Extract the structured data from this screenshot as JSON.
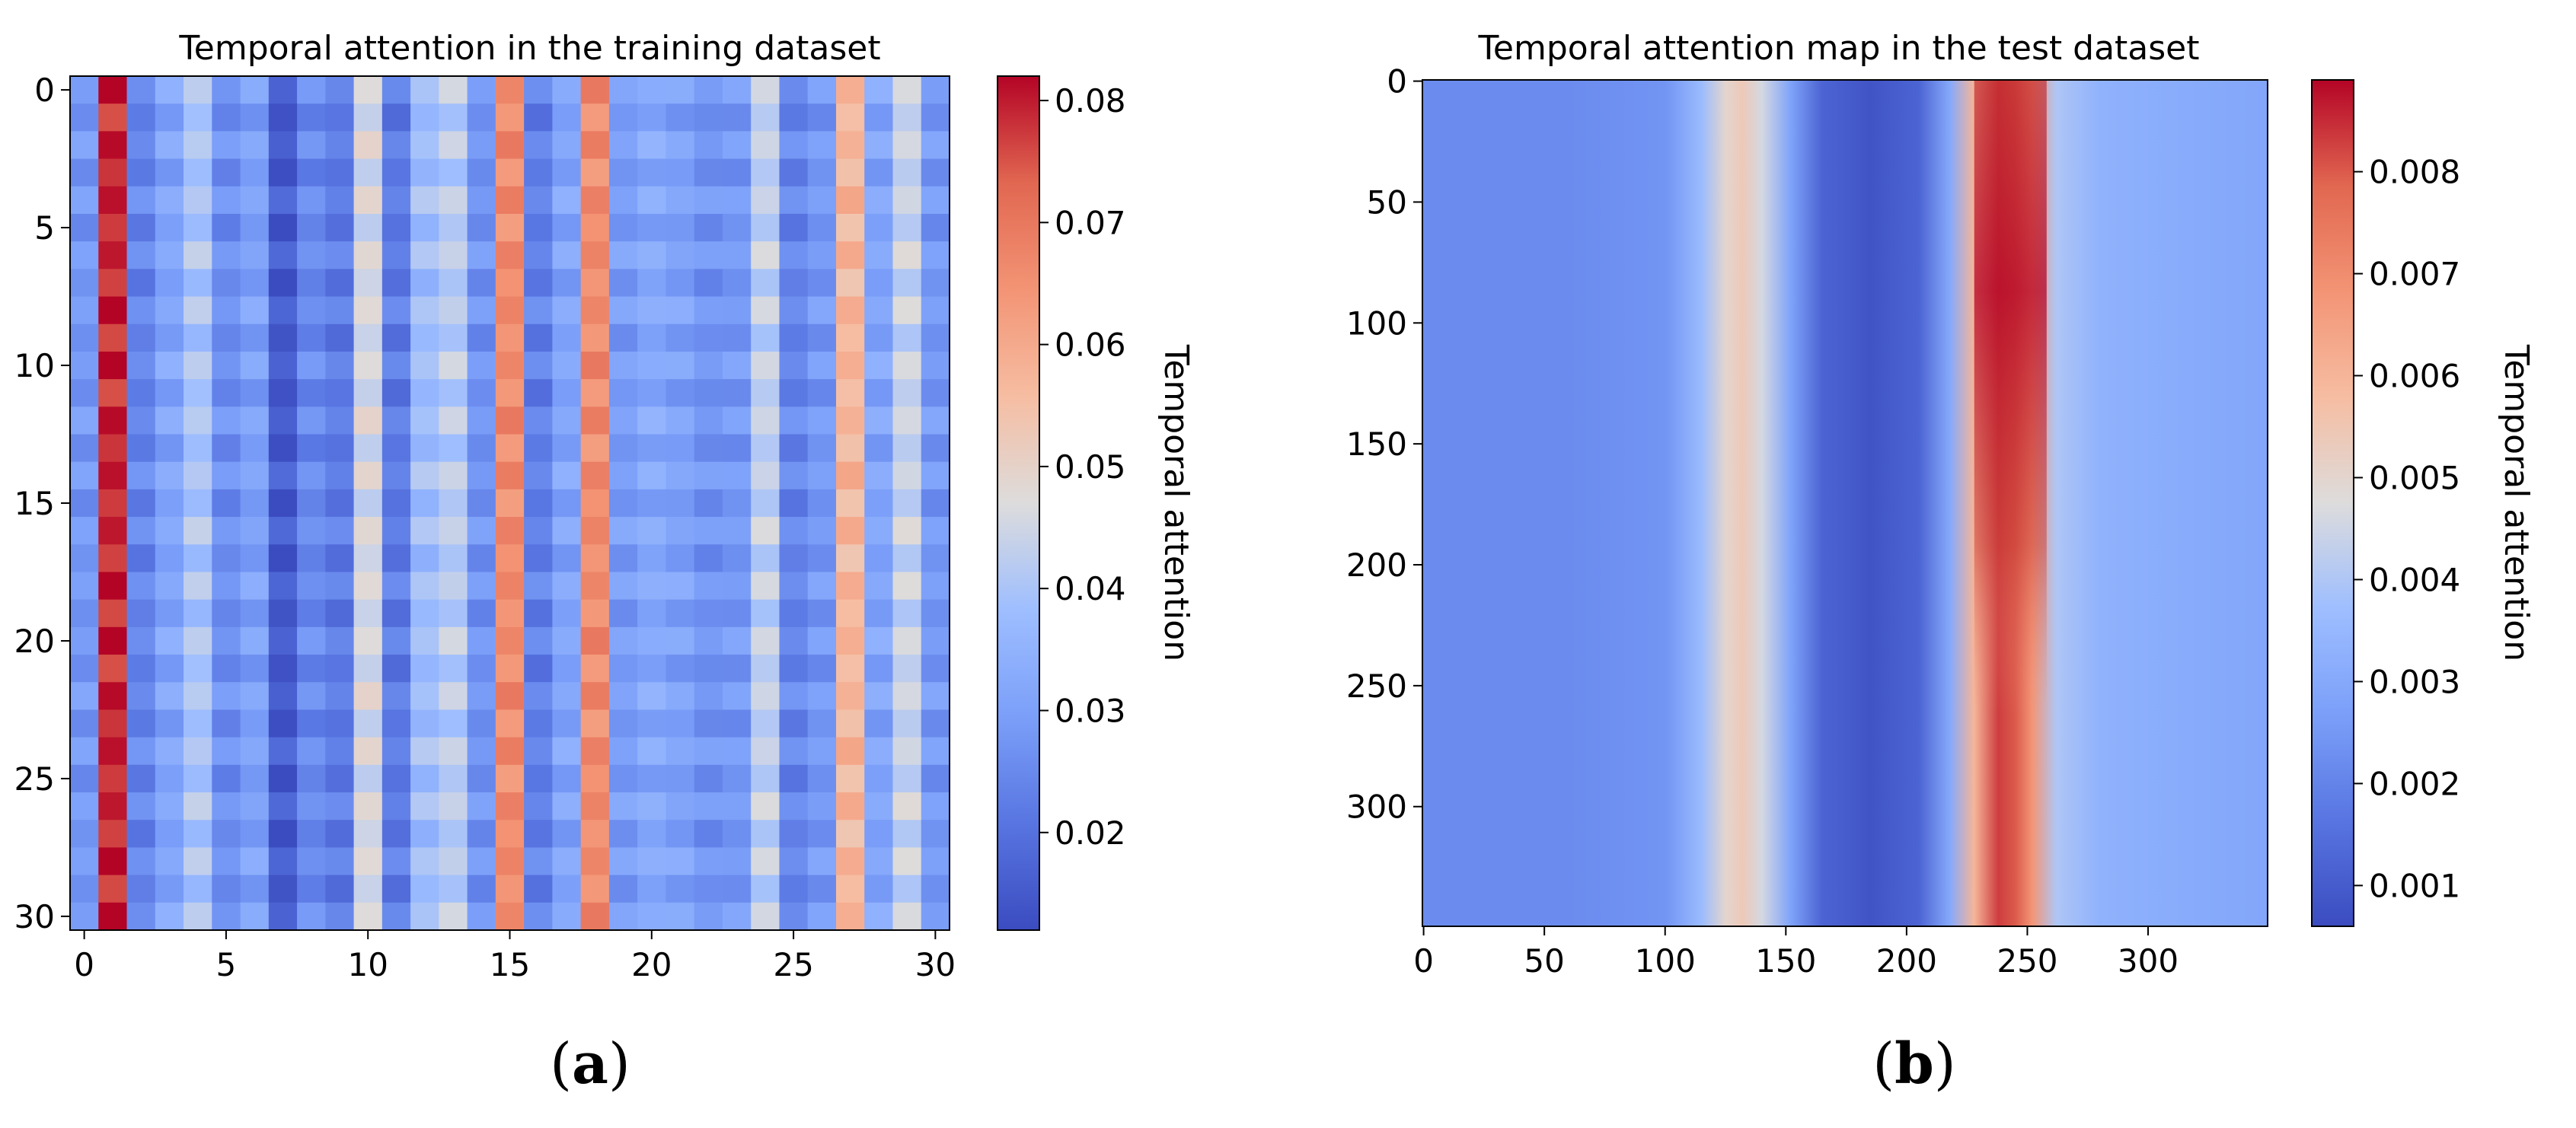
{
  "chart_data": [
    {
      "type": "heatmap",
      "title": "Temporal attention in the training dataset",
      "xlabel": "",
      "ylabel": "",
      "colorbar_label": "Temporal attention",
      "colormap": "coolwarm",
      "n_rows": 31,
      "n_cols": 31,
      "xlim": [
        -0.5,
        30.5
      ],
      "ylim": [
        30.5,
        -0.5
      ],
      "x_ticks": [
        0,
        5,
        10,
        15,
        20,
        25,
        30
      ],
      "y_ticks": [
        0,
        5,
        10,
        15,
        20,
        25,
        30
      ],
      "vmin": 0.012,
      "vmax": 0.082,
      "colorbar_ticks": [
        0.02,
        0.03,
        0.04,
        0.05,
        0.06,
        0.07,
        0.08
      ],
      "colorbar_tick_labels": [
        "0.02",
        "0.03",
        "0.04",
        "0.05",
        "0.06",
        "0.07",
        "0.08"
      ],
      "column_mean_values": [
        0.028,
        0.079,
        0.024,
        0.031,
        0.04,
        0.026,
        0.03,
        0.015,
        0.025,
        0.022,
        0.046,
        0.022,
        0.038,
        0.042,
        0.027,
        0.066,
        0.023,
        0.031,
        0.066,
        0.029,
        0.032,
        0.03,
        0.027,
        0.028,
        0.043,
        0.024,
        0.028,
        0.057,
        0.031,
        0.044,
        0.028
      ],
      "row_pattern_note": "columns vary slightly row to row (alternating rows)"
    },
    {
      "type": "heatmap",
      "title": "Temporal attention map in the test dataset",
      "xlabel": "",
      "ylabel": "",
      "colorbar_label": "Temporal attention",
      "colormap": "coolwarm",
      "xlim": [
        -0.5,
        349.5
      ],
      "ylim": [
        349.5,
        -0.5
      ],
      "x_ticks": [
        0,
        50,
        100,
        150,
        200,
        250,
        300
      ],
      "y_ticks": [
        0,
        50,
        100,
        150,
        200,
        250,
        300
      ],
      "vmin": 0.0006,
      "vmax": 0.0089,
      "colorbar_ticks": [
        0.001,
        0.002,
        0.003,
        0.004,
        0.005,
        0.006,
        0.007,
        0.008
      ],
      "colorbar_tick_labels": [
        "0.001",
        "0.002",
        "0.003",
        "0.004",
        "0.005",
        "0.006",
        "0.007",
        "0.008"
      ],
      "column_profile": [
        {
          "x": 0,
          "value": 0.0022
        },
        {
          "x": 60,
          "value": 0.0022
        },
        {
          "x": 100,
          "value": 0.0024
        },
        {
          "x": 115,
          "value": 0.0036
        },
        {
          "x": 125,
          "value": 0.005
        },
        {
          "x": 132,
          "value": 0.0054
        },
        {
          "x": 140,
          "value": 0.0046
        },
        {
          "x": 152,
          "value": 0.0028
        },
        {
          "x": 165,
          "value": 0.0012
        },
        {
          "x": 185,
          "value": 0.0008
        },
        {
          "x": 205,
          "value": 0.0012
        },
        {
          "x": 218,
          "value": 0.003
        },
        {
          "x": 228,
          "value": 0.006
        },
        {
          "x": 238,
          "value": 0.0083
        },
        {
          "x": 245,
          "value": 0.008
        },
        {
          "x": 252,
          "value": 0.0068
        },
        {
          "x": 262,
          "value": 0.004
        },
        {
          "x": 280,
          "value": 0.0033
        },
        {
          "x": 310,
          "value": 0.0031
        },
        {
          "x": 349,
          "value": 0.0029
        }
      ],
      "hot_band": {
        "x_range": [
          228,
          258
        ],
        "y_range": [
          0,
          200
        ],
        "peak_value": 0.0088,
        "lower_value": 0.0064
      }
    }
  ],
  "captions": {
    "a": "a",
    "b": "b"
  }
}
